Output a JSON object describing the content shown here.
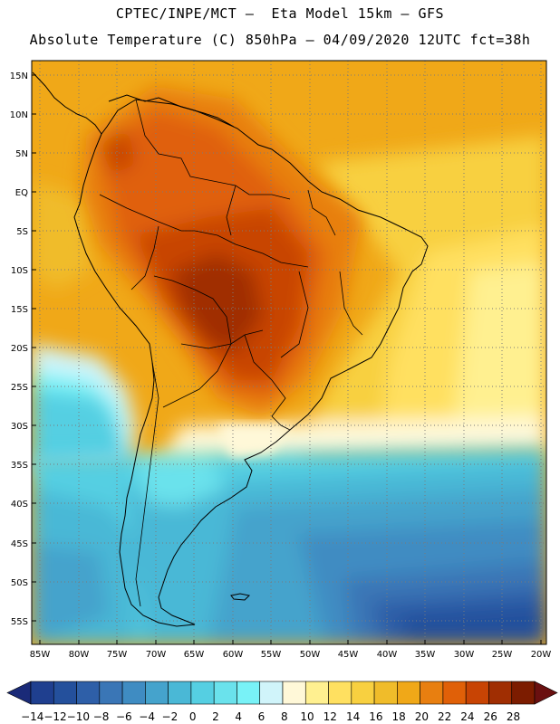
{
  "header": {
    "line1": "CPTEC/INPE/MCT –  Eta Model 15km – GFS",
    "line2": "Absolute Temperature (C) 850hPa – 04/09/2020 12UTC fct=38h"
  },
  "map": {
    "lat_labels": [
      "15N",
      "10N",
      "5N",
      "EQ",
      "5S",
      "10S",
      "15S",
      "20S",
      "25S",
      "30S",
      "35S",
      "40S",
      "45S",
      "50S",
      "55S"
    ],
    "lon_labels": [
      "85W",
      "80W",
      "75W",
      "70W",
      "65W",
      "60W",
      "55W",
      "50W",
      "45W",
      "40W",
      "35W",
      "30W",
      "25W",
      "20W"
    ],
    "region": "South America",
    "variable": "Absolute Temperature (C) 850hPa"
  },
  "colorbar": {
    "labels": [
      "-14",
      "-12",
      "-10",
      "-8",
      "-6",
      "-4",
      "-2",
      "0",
      "2",
      "4",
      "6",
      "8",
      "10",
      "12",
      "14",
      "16",
      "18",
      "20",
      "22",
      "24",
      "26",
      "28"
    ],
    "colors": [
      "#1f3f8f",
      "#24509c",
      "#2e5fa8",
      "#3a76b6",
      "#3f8cc2",
      "#45a3cc",
      "#4ab8d6",
      "#55cfe2",
      "#6ae2ec",
      "#78f2f7",
      "#d0f4fa",
      "#fff8d8",
      "#fff090",
      "#ffe060",
      "#f8d040",
      "#f0bc2a",
      "#f0a818",
      "#e87f10",
      "#e06008",
      "#c84404",
      "#a02e02",
      "#7c1c00"
    ],
    "arrow_low": "#1a2a78",
    "arrow_high": "#6a1010"
  }
}
